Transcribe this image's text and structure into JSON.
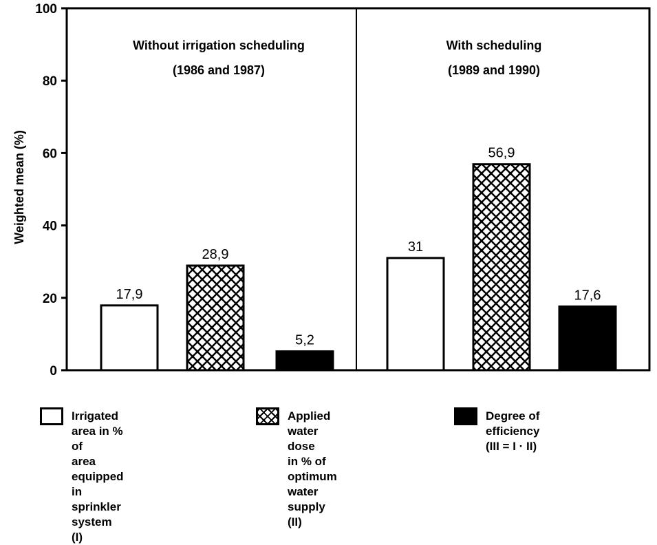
{
  "chart_data": {
    "type": "bar",
    "ylabel": "Weighted mean (%)",
    "ylim": [
      0,
      100
    ],
    "yticks": [
      0,
      20,
      40,
      60,
      80,
      100
    ],
    "groups": [
      {
        "title": "Without irrigation scheduling",
        "subtitle": "(1986 and 1987)"
      },
      {
        "title": "With scheduling",
        "subtitle": "(1989 and 1990)"
      }
    ],
    "series": [
      {
        "name": "Irrigated area in % of area equipped in sprinkler system (I)",
        "values": [
          17.9,
          31
        ],
        "labels": [
          "17,9",
          "31"
        ],
        "pattern": "empty"
      },
      {
        "name": "Applied water dose in % of optimum water supply (II)",
        "values": [
          28.9,
          56.9
        ],
        "labels": [
          "28,9",
          "56,9"
        ],
        "pattern": "crosshatch"
      },
      {
        "name": "Degree of efficiency (III = I · II)",
        "values": [
          5.2,
          17.6
        ],
        "labels": [
          "5,2",
          "17,6"
        ],
        "pattern": "solid"
      }
    ],
    "grid": false,
    "legend_position": "bottom",
    "colors": {
      "line": "#000000",
      "fill_solid": "#000000",
      "fill_empty": "#ffffff"
    }
  },
  "legend": [
    {
      "text": "Irrigated area in % of\narea equipped in\nsprinkler system (I)",
      "pattern": "empty"
    },
    {
      "text": "Applied water dose\nin % of optimum\nwater supply (II)",
      "pattern": "crosshatch"
    },
    {
      "text": "Degree of efficiency\n(III = I · II)",
      "pattern": "solid"
    }
  ]
}
